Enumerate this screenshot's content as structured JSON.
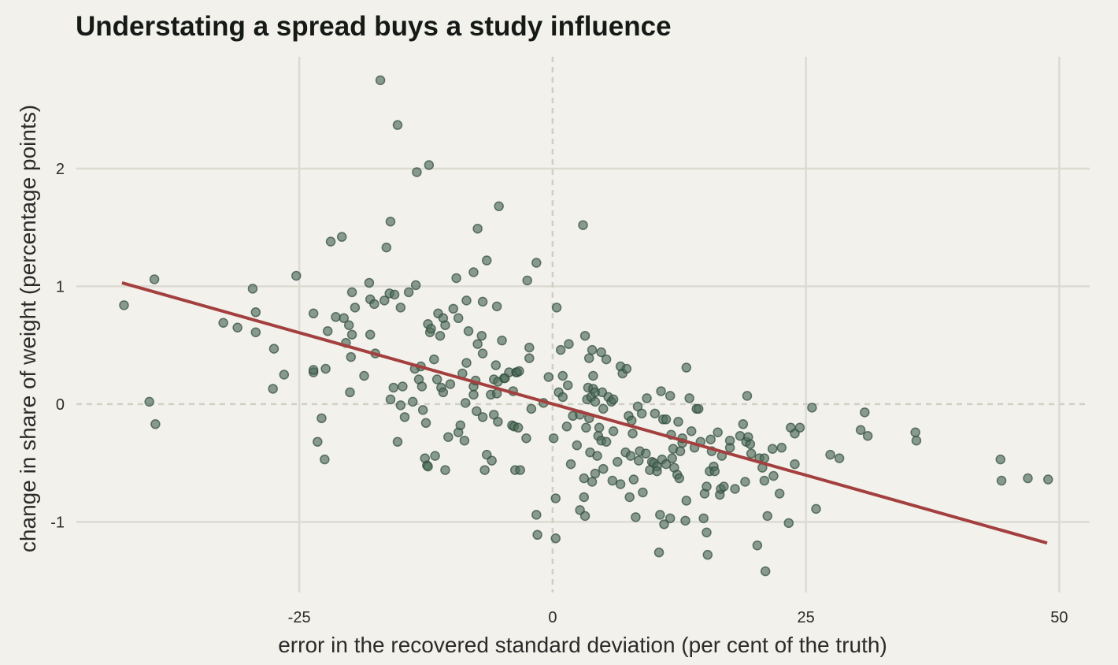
{
  "chart_data": {
    "type": "scatter",
    "title": "Understating a spread buys a study influence",
    "xlabel": "error in the recovered standard deviation (per cent of the truth)",
    "ylabel": "change in share of weight (percentage points)",
    "xlim": [
      -47,
      53
    ],
    "ylim": [
      -1.6,
      2.95
    ],
    "x_ticks": [
      -25,
      0,
      25,
      50
    ],
    "x_tick_labels": [
      "-25",
      "0",
      "25",
      "50"
    ],
    "y_ticks": [
      -1,
      0,
      1,
      2
    ],
    "y_tick_labels": [
      "-1",
      "0",
      "1",
      "2"
    ],
    "grid": true,
    "zero_reference_lines": true,
    "legend": "none",
    "colors": {
      "background": "#f2f1eb",
      "points": "#4d6b58",
      "fit_line": "#a3403f",
      "grid": "#dcdbd2"
    },
    "fit_line": {
      "x": [
        -42.5,
        48.8
      ],
      "y": [
        1.03,
        -1.18
      ]
    },
    "points": [
      [
        -42.3,
        0.84
      ],
      [
        -39.8,
        0.02
      ],
      [
        -39.2,
        -0.17
      ],
      [
        -39.3,
        1.06
      ],
      [
        -32.5,
        0.69
      ],
      [
        -31.1,
        0.65
      ],
      [
        -29.6,
        0.98
      ],
      [
        -29.3,
        0.78
      ],
      [
        -29.3,
        0.61
      ],
      [
        -27.6,
        0.13
      ],
      [
        -27.5,
        0.47
      ],
      [
        -26.5,
        0.25
      ],
      [
        -25.3,
        1.09
      ],
      [
        -23.6,
        0.27
      ],
      [
        -23.6,
        0.29
      ],
      [
        -23.6,
        0.77
      ],
      [
        -23.2,
        -0.32
      ],
      [
        -22.8,
        -0.12
      ],
      [
        -22.5,
        -0.47
      ],
      [
        -22.4,
        0.3
      ],
      [
        -22.2,
        0.62
      ],
      [
        -21.9,
        1.38
      ],
      [
        -21.4,
        0.74
      ],
      [
        -20.8,
        1.42
      ],
      [
        -20.6,
        0.73
      ],
      [
        -20.4,
        0.52
      ],
      [
        -20.1,
        0.67
      ],
      [
        -20.0,
        0.1
      ],
      [
        -19.9,
        0.4
      ],
      [
        -19.8,
        0.59
      ],
      [
        -19.8,
        0.95
      ],
      [
        -19.5,
        0.82
      ],
      [
        -18.6,
        0.24
      ],
      [
        -18.1,
        1.03
      ],
      [
        -18.0,
        0.59
      ],
      [
        -18.0,
        0.89
      ],
      [
        -17.6,
        0.85
      ],
      [
        -17.5,
        0.43
      ],
      [
        -17.0,
        2.75
      ],
      [
        -16.6,
        0.88
      ],
      [
        -16.4,
        1.33
      ],
      [
        -16.1,
        0.94
      ],
      [
        -16.0,
        1.55
      ],
      [
        -16.0,
        0.04
      ],
      [
        -15.7,
        0.14
      ],
      [
        -15.6,
        0.93
      ],
      [
        -15.3,
        2.37
      ],
      [
        -15.3,
        -0.32
      ],
      [
        -15.0,
        -0.01
      ],
      [
        -15.0,
        0.82
      ],
      [
        -14.8,
        0.15
      ],
      [
        -14.6,
        -0.11
      ],
      [
        -14.2,
        0.95
      ],
      [
        -13.8,
        0.02
      ],
      [
        -13.6,
        0.3
      ],
      [
        -13.5,
        1.01
      ],
      [
        -13.4,
        1.97
      ],
      [
        -13.2,
        0.21
      ],
      [
        -13.0,
        0.32
      ],
      [
        -12.9,
        0.15
      ],
      [
        -12.8,
        -0.05
      ],
      [
        -12.6,
        -0.46
      ],
      [
        -12.5,
        -0.16
      ],
      [
        -12.4,
        -0.52
      ],
      [
        -12.3,
        -0.53
      ],
      [
        -12.3,
        0.68
      ],
      [
        -12.2,
        2.03
      ],
      [
        -12.1,
        0.61
      ],
      [
        -12.0,
        0.64
      ],
      [
        -11.7,
        0.38
      ],
      [
        -11.6,
        -0.44
      ],
      [
        -11.4,
        0.21
      ],
      [
        -11.3,
        0.77
      ],
      [
        -11.1,
        0.58
      ],
      [
        -11.0,
        0.14
      ],
      [
        -10.8,
        0.1
      ],
      [
        -10.8,
        0.73
      ],
      [
        -10.6,
        0.67
      ],
      [
        -10.6,
        -0.56
      ],
      [
        -10.3,
        -0.28
      ],
      [
        -10.1,
        0.17
      ],
      [
        -9.8,
        0.81
      ],
      [
        -9.5,
        1.07
      ],
      [
        -9.3,
        -0.24
      ],
      [
        -9.3,
        0.73
      ],
      [
        -9.1,
        -0.18
      ],
      [
        -8.9,
        0.26
      ],
      [
        -8.7,
        -0.31
      ],
      [
        -8.6,
        0.01
      ],
      [
        -8.5,
        0.35
      ],
      [
        -8.5,
        0.88
      ],
      [
        -8.3,
        0.62
      ],
      [
        -7.8,
        0.08
      ],
      [
        -7.8,
        1.12
      ],
      [
        -7.8,
        0.15
      ],
      [
        -7.6,
        0.2
      ],
      [
        -7.5,
        -0.06
      ],
      [
        -7.4,
        0.51
      ],
      [
        -7.4,
        1.49
      ],
      [
        -7.0,
        0.58
      ],
      [
        -6.9,
        0.43
      ],
      [
        -6.9,
        -0.11
      ],
      [
        -6.9,
        0.87
      ],
      [
        -6.7,
        -0.56
      ],
      [
        -6.5,
        -0.43
      ],
      [
        -6.5,
        1.22
      ],
      [
        -6.1,
        0.08
      ],
      [
        -6.0,
        -0.48
      ],
      [
        -5.8,
        0.21
      ],
      [
        -5.8,
        -0.09
      ],
      [
        -5.6,
        0.33
      ],
      [
        -5.5,
        0.83
      ],
      [
        -5.5,
        0.09
      ],
      [
        -5.4,
        -0.15
      ],
      [
        -5.4,
        0.19
      ],
      [
        -5.3,
        1.68
      ],
      [
        -5.0,
        0.54
      ],
      [
        -4.8,
        0.22
      ],
      [
        -4.7,
        0.22
      ],
      [
        -4.3,
        0.27
      ],
      [
        -4.0,
        -0.18
      ],
      [
        -3.9,
        0.11
      ],
      [
        -3.8,
        -0.19
      ],
      [
        -3.7,
        -0.56
      ],
      [
        -3.6,
        0.27
      ],
      [
        -3.5,
        0.27
      ],
      [
        -3.4,
        -0.2
      ],
      [
        -3.3,
        0.28
      ],
      [
        -3.2,
        -0.56
      ],
      [
        -2.6,
        -0.29
      ],
      [
        -2.5,
        1.05
      ],
      [
        -2.3,
        0.39
      ],
      [
        -2.3,
        0.48
      ],
      [
        -2.1,
        -0.04
      ],
      [
        -1.6,
        -0.94
      ],
      [
        -1.6,
        1.2
      ],
      [
        -1.5,
        -1.11
      ],
      [
        -0.9,
        0.01
      ],
      [
        -0.4,
        0.23
      ],
      [
        0.1,
        -0.29
      ],
      [
        0.3,
        -1.14
      ],
      [
        0.3,
        -0.8
      ],
      [
        0.4,
        0.82
      ],
      [
        0.6,
        0.1
      ],
      [
        0.8,
        0.46
      ],
      [
        1.0,
        0.06
      ],
      [
        1.0,
        0.24
      ],
      [
        1.4,
        -0.19
      ],
      [
        1.5,
        0.16
      ],
      [
        1.6,
        0.51
      ],
      [
        1.8,
        -0.51
      ],
      [
        2.0,
        -0.1
      ],
      [
        2.4,
        -0.35
      ],
      [
        2.7,
        -0.09
      ],
      [
        2.7,
        -0.9
      ],
      [
        3.0,
        1.52
      ],
      [
        3.1,
        -0.79
      ],
      [
        3.1,
        -0.63
      ],
      [
        3.2,
        0.58
      ],
      [
        3.2,
        -0.95
      ],
      [
        3.3,
        -0.2
      ],
      [
        3.4,
        0.04
      ],
      [
        3.5,
        0.14
      ],
      [
        3.6,
        -0.12
      ],
      [
        3.6,
        0.39
      ],
      [
        3.7,
        -0.41
      ],
      [
        3.8,
        0.06
      ],
      [
        3.9,
        0.46
      ],
      [
        3.9,
        -0.66
      ],
      [
        4.0,
        0.24
      ],
      [
        4.0,
        0.13
      ],
      [
        4.2,
        0.02
      ],
      [
        4.2,
        -0.59
      ],
      [
        4.2,
        0.1
      ],
      [
        4.4,
        -0.44
      ],
      [
        4.5,
        -0.27
      ],
      [
        4.6,
        -0.2
      ],
      [
        4.8,
        0.44
      ],
      [
        4.8,
        -0.31
      ],
      [
        4.9,
        0.1
      ],
      [
        5.0,
        -0.04
      ],
      [
        5.0,
        -0.55
      ],
      [
        5.3,
        -0.32
      ],
      [
        5.3,
        0.38
      ],
      [
        5.5,
        0.06
      ],
      [
        5.8,
        0.02
      ],
      [
        5.9,
        -0.65
      ],
      [
        6.0,
        0.04
      ],
      [
        6.0,
        -0.23
      ],
      [
        6.4,
        -0.49
      ],
      [
        6.7,
        0.32
      ],
      [
        6.7,
        -0.68
      ],
      [
        6.9,
        0.26
      ],
      [
        7.2,
        -0.41
      ],
      [
        7.3,
        0.3
      ],
      [
        7.5,
        -0.1
      ],
      [
        7.6,
        -0.79
      ],
      [
        7.7,
        -0.44
      ],
      [
        7.8,
        -0.14
      ],
      [
        7.9,
        -0.25
      ],
      [
        8.0,
        -0.64
      ],
      [
        8.2,
        -0.96
      ],
      [
        8.4,
        -0.02
      ],
      [
        8.5,
        -0.48
      ],
      [
        8.6,
        -0.4
      ],
      [
        8.8,
        -0.08
      ],
      [
        8.9,
        -0.75
      ],
      [
        9.2,
        -0.42
      ],
      [
        9.3,
        0.05
      ],
      [
        9.6,
        -0.56
      ],
      [
        9.8,
        -0.49
      ],
      [
        10.0,
        -0.5
      ],
      [
        10.1,
        -0.08
      ],
      [
        10.3,
        -0.53
      ],
      [
        10.3,
        -0.57
      ],
      [
        10.5,
        -1.26
      ],
      [
        10.6,
        -0.94
      ],
      [
        10.7,
        0.11
      ],
      [
        10.8,
        -0.47
      ],
      [
        10.9,
        -0.13
      ],
      [
        11.0,
        -1.02
      ],
      [
        11.2,
        -0.13
      ],
      [
        11.2,
        -0.51
      ],
      [
        11.6,
        0.07
      ],
      [
        11.6,
        -0.97
      ],
      [
        11.7,
        -0.26
      ],
      [
        11.8,
        -0.46
      ],
      [
        11.9,
        -0.38
      ],
      [
        12.0,
        -0.54
      ],
      [
        12.3,
        -0.6
      ],
      [
        12.4,
        -0.15
      ],
      [
        12.5,
        -0.63
      ],
      [
        12.6,
        -0.4
      ],
      [
        12.8,
        -0.33
      ],
      [
        12.8,
        -0.29
      ],
      [
        13.1,
        -0.99
      ],
      [
        13.2,
        -0.82
      ],
      [
        13.2,
        0.31
      ],
      [
        13.5,
        0.05
      ],
      [
        13.7,
        -0.23
      ],
      [
        14.0,
        -0.37
      ],
      [
        14.2,
        -0.04
      ],
      [
        14.4,
        -0.04
      ],
      [
        14.6,
        -0.32
      ],
      [
        14.9,
        -0.97
      ],
      [
        15.0,
        -0.76
      ],
      [
        15.2,
        -0.7
      ],
      [
        15.2,
        -1.09
      ],
      [
        15.3,
        -1.28
      ],
      [
        15.5,
        -0.57
      ],
      [
        15.6,
        -0.3
      ],
      [
        15.7,
        -0.4
      ],
      [
        15.9,
        -0.53
      ],
      [
        16.0,
        -0.57
      ],
      [
        16.3,
        -0.24
      ],
      [
        16.5,
        -0.77
      ],
      [
        16.6,
        -0.72
      ],
      [
        16.7,
        -0.44
      ],
      [
        16.9,
        -0.7
      ],
      [
        17.5,
        -0.37
      ],
      [
        17.5,
        -0.31
      ],
      [
        18.0,
        -0.72
      ],
      [
        18.5,
        -0.27
      ],
      [
        18.8,
        -0.17
      ],
      [
        19.0,
        -0.66
      ],
      [
        19.1,
        -0.32
      ],
      [
        19.2,
        0.07
      ],
      [
        19.3,
        -0.28
      ],
      [
        19.5,
        -0.34
      ],
      [
        19.6,
        -0.42
      ],
      [
        20.2,
        -1.2
      ],
      [
        20.4,
        -0.46
      ],
      [
        20.7,
        -0.54
      ],
      [
        20.9,
        -0.65
      ],
      [
        20.9,
        -0.46
      ],
      [
        21.0,
        -1.42
      ],
      [
        21.2,
        -0.95
      ],
      [
        21.7,
        -0.38
      ],
      [
        21.8,
        -0.61
      ],
      [
        22.4,
        -0.76
      ],
      [
        22.6,
        -0.37
      ],
      [
        23.3,
        -1.01
      ],
      [
        23.5,
        -0.2
      ],
      [
        23.9,
        -0.25
      ],
      [
        23.9,
        -0.51
      ],
      [
        24.4,
        -0.2
      ],
      [
        25.6,
        -0.03
      ],
      [
        26.0,
        -0.89
      ],
      [
        27.4,
        -0.43
      ],
      [
        28.3,
        -0.46
      ],
      [
        30.4,
        -0.22
      ],
      [
        30.8,
        -0.07
      ],
      [
        31.1,
        -0.27
      ],
      [
        35.8,
        -0.24
      ],
      [
        35.9,
        -0.31
      ],
      [
        44.2,
        -0.47
      ],
      [
        44.3,
        -0.65
      ],
      [
        46.9,
        -0.63
      ],
      [
        48.9,
        -0.64
      ]
    ]
  }
}
